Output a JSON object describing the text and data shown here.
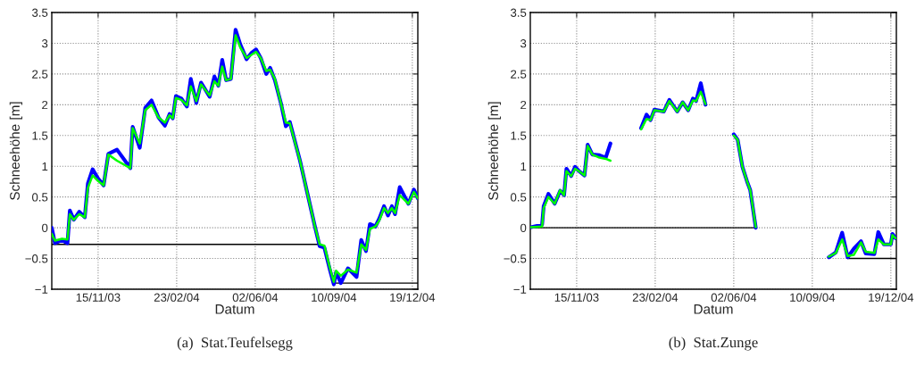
{
  "chart_data": [
    {
      "type": "line",
      "xlabel": "Datum",
      "ylabel": "Schneehöhe [m]",
      "annotations": [
        "(a)  Stat.Teufelsegg"
      ],
      "grid": true,
      "line_style": "solid",
      "xlim": [
        "2003-09-17",
        "2004-12-26"
      ],
      "ylim": [
        -1,
        3.5
      ],
      "xticks": [
        {
          "value": "2003-11-15",
          "label": "15/11/03"
        },
        {
          "value": "2004-02-23",
          "label": "23/02/04"
        },
        {
          "value": "2004-06-02",
          "label": "02/06/04"
        },
        {
          "value": "2004-09-10",
          "label": "10/09/04"
        },
        {
          "value": "2004-12-19",
          "label": "19/12/04"
        }
      ],
      "yticks": [
        -1,
        -0.5,
        0,
        0.5,
        1,
        1.5,
        2,
        2.5,
        3,
        3.5
      ],
      "series": [
        {
          "color": "#0000ff",
          "x": [
            "2003-09-17",
            "2003-09-21",
            "2003-09-30",
            "2003-10-07",
            "2003-10-10",
            "2003-10-15",
            "2003-10-22",
            "2003-10-29",
            "2003-11-02",
            "2003-11-08",
            "2003-11-15",
            "2003-11-22",
            "2003-11-28",
            "2003-12-09",
            "2003-12-26",
            "2003-12-29",
            "2004-01-07",
            "2004-01-14",
            "2004-01-22",
            "2004-01-31",
            "2004-02-08",
            "2004-02-14",
            "2004-02-18",
            "2004-02-22",
            "2004-02-29",
            "2004-03-07",
            "2004-03-12",
            "2004-03-19",
            "2004-03-25",
            "2004-04-05",
            "2004-04-11",
            "2004-04-16",
            "2004-04-21",
            "2004-04-26",
            "2004-05-02",
            "2004-05-08",
            "2004-05-14",
            "2004-05-22",
            "2004-05-28",
            "2004-06-03",
            "2004-06-09",
            "2004-06-16",
            "2004-06-21",
            "2004-06-27",
            "2004-07-05",
            "2004-07-11",
            "2004-07-16",
            "2004-07-29",
            "2004-08-17",
            "2004-08-23",
            "2004-08-29",
            "2004-09-05",
            "2004-09-10",
            "2004-09-13",
            "2004-09-19",
            "2004-09-28",
            "2004-10-09",
            "2004-10-15",
            "2004-10-21",
            "2004-10-26",
            "2004-11-02",
            "2004-11-07",
            "2004-11-13",
            "2004-11-18",
            "2004-11-23",
            "2004-11-27",
            "2004-12-03",
            "2004-12-14",
            "2004-12-21",
            "2004-12-26"
          ],
          "values": [
            0.0,
            -0.25,
            -0.2,
            -0.25,
            0.28,
            0.13,
            0.26,
            0.17,
            0.72,
            0.95,
            0.8,
            0.69,
            1.2,
            1.27,
            0.97,
            1.64,
            1.3,
            1.95,
            2.07,
            1.79,
            1.66,
            1.85,
            1.78,
            2.14,
            2.1,
            1.97,
            2.42,
            2.03,
            2.36,
            2.13,
            2.46,
            2.31,
            2.73,
            2.4,
            2.42,
            3.22,
            2.98,
            2.74,
            2.84,
            2.9,
            2.76,
            2.5,
            2.6,
            2.4,
            2.01,
            1.65,
            1.72,
            1.09,
            0.02,
            -0.3,
            -0.32,
            -0.68,
            -0.92,
            -0.72,
            -0.9,
            -0.66,
            -0.8,
            -0.2,
            -0.38,
            0.06,
            0.02,
            0.15,
            0.35,
            0.2,
            0.35,
            0.22,
            0.66,
            0.39,
            0.62,
            0.48
          ]
        },
        {
          "color": "#00ff00",
          "x": [
            "2003-09-17",
            "2003-09-21",
            "2003-09-30",
            "2003-10-07",
            "2003-10-10",
            "2003-10-15",
            "2003-10-22",
            "2003-10-29",
            "2003-11-02",
            "2003-11-08",
            "2003-11-15",
            "2003-11-22",
            "2003-11-28",
            "2003-12-09",
            "2003-12-26",
            "2003-12-29",
            "2004-01-07",
            "2004-01-14",
            "2004-01-22",
            "2004-01-31",
            "2004-02-08",
            "2004-02-14",
            "2004-02-18",
            "2004-02-22",
            "2004-02-29",
            "2004-03-07",
            "2004-03-12",
            "2004-03-19",
            "2004-03-25",
            "2004-04-05",
            "2004-04-11",
            "2004-04-16",
            "2004-04-21",
            "2004-04-26",
            "2004-05-02",
            "2004-05-08",
            "2004-05-14",
            "2004-05-22",
            "2004-05-28",
            "2004-06-03",
            "2004-06-09",
            "2004-06-16",
            "2004-06-21",
            "2004-06-27",
            "2004-07-05",
            "2004-07-11",
            "2004-07-16",
            "2004-07-29",
            "2004-08-17",
            "2004-08-23",
            "2004-08-29",
            "2004-09-05",
            "2004-09-10",
            "2004-09-13",
            "2004-09-19",
            "2004-09-28",
            "2004-10-09",
            "2004-10-15",
            "2004-10-21",
            "2004-10-26",
            "2004-11-02",
            "2004-11-07",
            "2004-11-13",
            "2004-11-18",
            "2004-11-23",
            "2004-11-27",
            "2004-12-03",
            "2004-12-14",
            "2004-12-21",
            "2004-12-26"
          ],
          "values": [
            -0.1,
            -0.21,
            -0.18,
            -0.19,
            0.22,
            0.13,
            0.22,
            0.17,
            0.65,
            0.85,
            0.76,
            0.69,
            1.19,
            1.09,
            0.97,
            1.62,
            1.37,
            1.91,
            2.0,
            1.79,
            1.71,
            1.83,
            1.78,
            2.11,
            2.08,
            1.99,
            2.3,
            2.06,
            2.33,
            2.15,
            2.38,
            2.31,
            2.62,
            2.4,
            2.42,
            3.13,
            2.93,
            2.76,
            2.81,
            2.86,
            2.76,
            2.55,
            2.57,
            2.42,
            2.01,
            1.71,
            1.7,
            1.09,
            0.02,
            -0.27,
            -0.29,
            -0.65,
            -0.88,
            -0.7,
            -0.78,
            -0.68,
            -0.73,
            -0.27,
            -0.36,
            -0.02,
            0.02,
            0.12,
            0.32,
            0.24,
            0.32,
            0.24,
            0.53,
            0.39,
            0.58,
            0.48
          ]
        },
        {
          "color": "#000000",
          "x": [
            "2003-09-17",
            "2004-08-23"
          ],
          "values": [
            -0.27,
            -0.27
          ]
        },
        {
          "color": "#000000",
          "x": [
            "2004-09-10",
            "2004-12-26"
          ],
          "values": [
            -0.9,
            -0.9
          ]
        }
      ]
    },
    {
      "type": "line",
      "xlabel": "Datum",
      "ylabel": "Schneehöhe [m]",
      "annotations": [
        "(b)  Stat.Zunge"
      ],
      "grid": true,
      "line_style": "solid",
      "xlim": [
        "2003-09-17",
        "2004-12-26"
      ],
      "ylim": [
        -1,
        3.5
      ],
      "xticks": [
        {
          "value": "2003-11-15",
          "label": "15/11/03"
        },
        {
          "value": "2004-02-23",
          "label": "23/02/04"
        },
        {
          "value": "2004-06-02",
          "label": "02/06/04"
        },
        {
          "value": "2004-09-10",
          "label": "10/09/04"
        },
        {
          "value": "2004-12-19",
          "label": "19/12/04"
        }
      ],
      "yticks": [
        -1,
        -0.5,
        0,
        0.5,
        1,
        1.5,
        2,
        2.5,
        3,
        3.5
      ],
      "series": [
        {
          "color": "#0000ff",
          "x": [
            "2003-09-18",
            "2003-10-02",
            "2003-10-04",
            "2003-10-10",
            "2003-10-18",
            "2003-10-25",
            "2003-10-30",
            "2003-11-02",
            "2003-11-08",
            "2003-11-13",
            "2003-11-18",
            "2003-11-25",
            "2003-11-29",
            "2003-12-05",
            "2003-12-14",
            "2003-12-22",
            "2003-12-28",
            "2004-01-15",
            "2004-02-05",
            "2004-02-12",
            "2004-02-17",
            "2004-02-22",
            "2004-03-05",
            "2004-03-12",
            "2004-03-22",
            "2004-03-29",
            "2004-04-05",
            "2004-04-11",
            "2004-04-15",
            "2004-04-21",
            "2004-04-27",
            "2004-05-15",
            "2004-06-02",
            "2004-06-07",
            "2004-06-13",
            "2004-06-19",
            "2004-06-23",
            "2004-06-30",
            "2004-08-15",
            "2004-10-01",
            "2004-10-10",
            "2004-10-18",
            "2004-10-25",
            "2004-11-02",
            "2004-11-11",
            "2004-11-17",
            "2004-11-28",
            "2004-12-03",
            "2004-12-10",
            "2004-12-19",
            "2004-12-21",
            "2004-12-25"
          ],
          "values": [
            0.01,
            0.05,
            0.35,
            0.55,
            0.39,
            0.6,
            0.53,
            0.96,
            0.84,
            0.99,
            0.92,
            0.85,
            1.35,
            1.19,
            1.18,
            1.14,
            1.37,
            null,
            1.62,
            1.84,
            1.75,
            1.92,
            1.89,
            2.08,
            1.89,
            2.04,
            1.91,
            2.1,
            2.06,
            2.35,
            2.0,
            null,
            1.52,
            1.43,
            0.99,
            0.75,
            0.61,
            0.0,
            null,
            -0.48,
            -0.4,
            -0.08,
            -0.48,
            -0.34,
            -0.22,
            -0.42,
            -0.43,
            -0.07,
            -0.27,
            -0.27,
            -0.1,
            -0.17
          ]
        },
        {
          "color": "#00ff00",
          "x": [
            "2003-09-18",
            "2003-10-02",
            "2003-10-04",
            "2003-10-10",
            "2003-10-18",
            "2003-10-25",
            "2003-10-30",
            "2003-11-02",
            "2003-11-08",
            "2003-11-13",
            "2003-11-18",
            "2003-11-25",
            "2003-11-29",
            "2003-12-05",
            "2003-12-14",
            "2003-12-22",
            "2003-12-28",
            "2004-01-15",
            "2004-02-05",
            "2004-02-12",
            "2004-02-17",
            "2004-02-22",
            "2004-03-05",
            "2004-03-12",
            "2004-03-22",
            "2004-03-29",
            "2004-04-05",
            "2004-04-11",
            "2004-04-15",
            "2004-04-21",
            "2004-04-27",
            "2004-05-15",
            "2004-06-02",
            "2004-06-07",
            "2004-06-13",
            "2004-06-19",
            "2004-06-23",
            "2004-06-30",
            "2004-08-15",
            "2004-10-01",
            "2004-10-10",
            "2004-10-18",
            "2004-10-25",
            "2004-11-02",
            "2004-11-11",
            "2004-11-17",
            "2004-11-28",
            "2004-12-03",
            "2004-12-10",
            "2004-12-19",
            "2004-12-21",
            "2004-12-25"
          ],
          "values": [
            0.01,
            0.02,
            0.32,
            0.5,
            0.39,
            0.61,
            0.53,
            0.92,
            0.84,
            0.96,
            0.92,
            0.85,
            1.33,
            1.19,
            1.14,
            1.12,
            1.09,
            null,
            1.6,
            1.77,
            1.75,
            1.91,
            1.89,
            2.06,
            1.89,
            2.04,
            1.91,
            2.07,
            2.06,
            2.21,
            2.01,
            null,
            1.5,
            1.43,
            0.99,
            0.75,
            0.61,
            0.01,
            null,
            -0.47,
            -0.41,
            -0.19,
            -0.46,
            -0.44,
            -0.24,
            -0.39,
            -0.41,
            -0.19,
            -0.27,
            -0.27,
            -0.12,
            -0.17
          ]
        },
        {
          "color": "#000000",
          "x": [
            "2003-09-18",
            "2004-06-30"
          ],
          "values": [
            0,
            0
          ]
        },
        {
          "color": "#000000",
          "x": [
            "2004-10-25",
            "2004-12-25"
          ],
          "values": [
            -0.5,
            -0.5
          ]
        }
      ]
    }
  ]
}
